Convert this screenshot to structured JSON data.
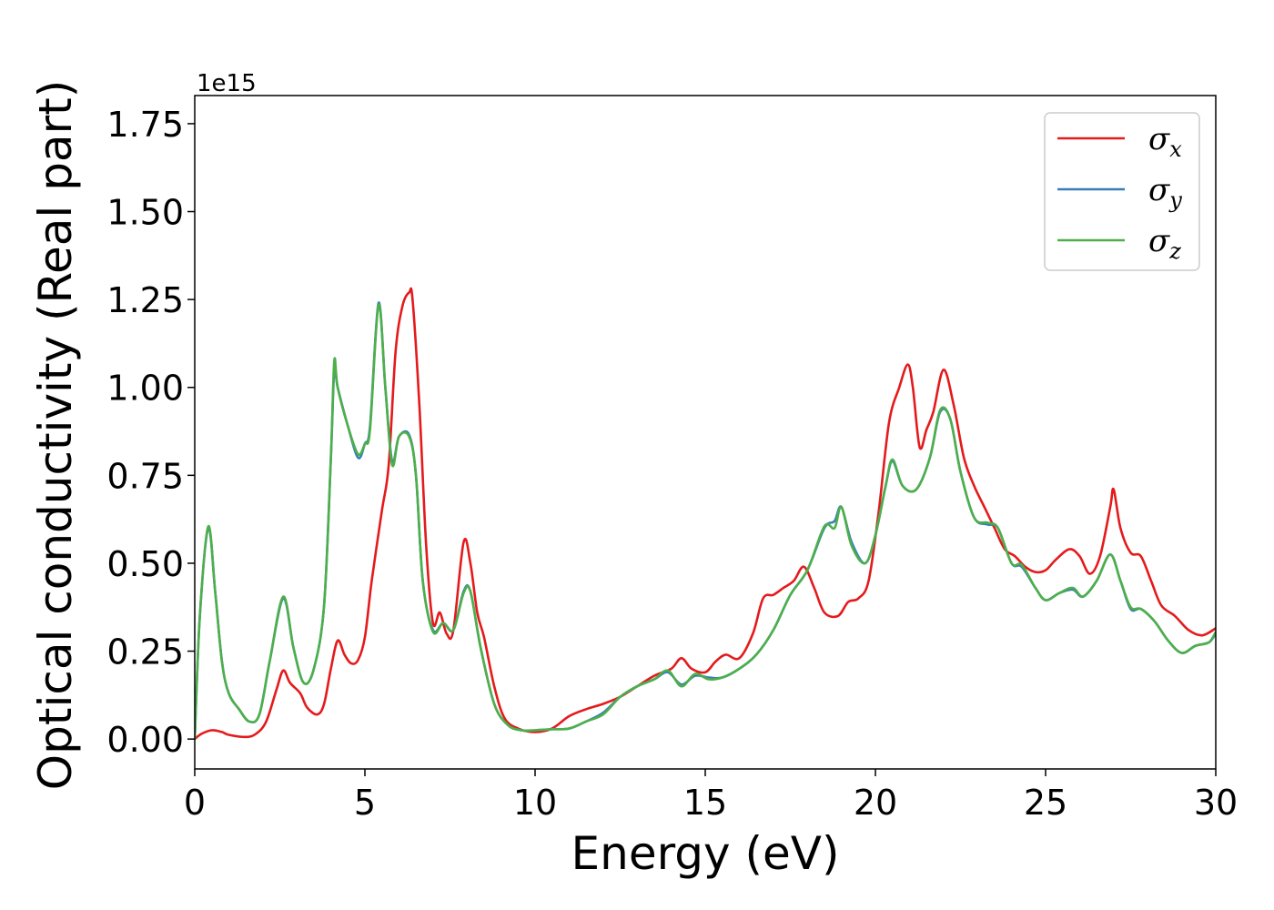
{
  "chart_data": {
    "type": "line",
    "xlabel": "Energy (eV)",
    "ylabel": "Optical conductivity (Real part)",
    "y_offset_text": "1e15",
    "xlim": [
      0,
      30
    ],
    "ylim": [
      -0.085,
      1.83
    ],
    "x_ticks": [
      0,
      5,
      10,
      15,
      20,
      25,
      30
    ],
    "x_tick_labels": [
      "0",
      "5",
      "10",
      "15",
      "20",
      "25",
      "30"
    ],
    "y_ticks": [
      0,
      0.25,
      0.5,
      0.75,
      1.0,
      1.25,
      1.5,
      1.75
    ],
    "y_tick_labels": [
      "0.00",
      "0.25",
      "0.50",
      "0.75",
      "1.00",
      "1.25",
      "1.50",
      "1.75"
    ],
    "grid": false,
    "legend_position": "top-right",
    "series": [
      {
        "name": "σx",
        "symbol": "σ",
        "subscript": "x",
        "color": "#e41a1c",
        "points": [
          [
            0,
            0.0
          ],
          [
            0.2,
            0.015
          ],
          [
            0.5,
            0.025
          ],
          [
            0.8,
            0.02
          ],
          [
            1.0,
            0.012
          ],
          [
            1.5,
            0.006
          ],
          [
            1.8,
            0.015
          ],
          [
            2.1,
            0.05
          ],
          [
            2.4,
            0.14
          ],
          [
            2.6,
            0.195
          ],
          [
            2.8,
            0.16
          ],
          [
            3.1,
            0.13
          ],
          [
            3.3,
            0.09
          ],
          [
            3.6,
            0.07
          ],
          [
            3.8,
            0.1
          ],
          [
            4.0,
            0.2
          ],
          [
            4.2,
            0.28
          ],
          [
            4.4,
            0.24
          ],
          [
            4.6,
            0.215
          ],
          [
            4.8,
            0.225
          ],
          [
            5.0,
            0.29
          ],
          [
            5.2,
            0.45
          ],
          [
            5.5,
            0.65
          ],
          [
            5.7,
            0.78
          ],
          [
            5.9,
            1.1
          ],
          [
            6.1,
            1.23
          ],
          [
            6.3,
            1.27
          ],
          [
            6.4,
            1.25
          ],
          [
            6.6,
            0.95
          ],
          [
            6.8,
            0.55
          ],
          [
            7.0,
            0.33
          ],
          [
            7.2,
            0.36
          ],
          [
            7.4,
            0.3
          ],
          [
            7.6,
            0.31
          ],
          [
            7.9,
            0.56
          ],
          [
            8.1,
            0.5
          ],
          [
            8.3,
            0.36
          ],
          [
            8.5,
            0.29
          ],
          [
            8.8,
            0.15
          ],
          [
            9.1,
            0.06
          ],
          [
            9.5,
            0.03
          ],
          [
            10.0,
            0.02
          ],
          [
            10.5,
            0.03
          ],
          [
            11.0,
            0.065
          ],
          [
            11.5,
            0.085
          ],
          [
            12.0,
            0.1
          ],
          [
            12.5,
            0.12
          ],
          [
            13.0,
            0.15
          ],
          [
            13.5,
            0.18
          ],
          [
            14.0,
            0.2
          ],
          [
            14.3,
            0.23
          ],
          [
            14.6,
            0.2
          ],
          [
            15.0,
            0.19
          ],
          [
            15.3,
            0.22
          ],
          [
            15.6,
            0.24
          ],
          [
            16.0,
            0.23
          ],
          [
            16.4,
            0.3
          ],
          [
            16.7,
            0.4
          ],
          [
            17.0,
            0.41
          ],
          [
            17.3,
            0.43
          ],
          [
            17.6,
            0.45
          ],
          [
            17.9,
            0.49
          ],
          [
            18.2,
            0.43
          ],
          [
            18.5,
            0.36
          ],
          [
            18.9,
            0.35
          ],
          [
            19.2,
            0.39
          ],
          [
            19.5,
            0.4
          ],
          [
            19.8,
            0.45
          ],
          [
            20.1,
            0.65
          ],
          [
            20.4,
            0.9
          ],
          [
            20.7,
            1.0
          ],
          [
            20.95,
            1.065
          ],
          [
            21.1,
            1.0
          ],
          [
            21.3,
            0.83
          ],
          [
            21.5,
            0.88
          ],
          [
            21.7,
            0.93
          ],
          [
            22.0,
            1.05
          ],
          [
            22.3,
            0.95
          ],
          [
            22.6,
            0.8
          ],
          [
            22.9,
            0.72
          ],
          [
            23.2,
            0.66
          ],
          [
            23.5,
            0.6
          ],
          [
            23.8,
            0.54
          ],
          [
            24.1,
            0.52
          ],
          [
            24.4,
            0.49
          ],
          [
            24.7,
            0.475
          ],
          [
            25.0,
            0.48
          ],
          [
            25.3,
            0.51
          ],
          [
            25.7,
            0.54
          ],
          [
            26.0,
            0.52
          ],
          [
            26.3,
            0.47
          ],
          [
            26.6,
            0.52
          ],
          [
            26.9,
            0.66
          ],
          [
            27.0,
            0.71
          ],
          [
            27.2,
            0.6
          ],
          [
            27.5,
            0.53
          ],
          [
            27.8,
            0.52
          ],
          [
            28.1,
            0.45
          ],
          [
            28.4,
            0.38
          ],
          [
            28.8,
            0.35
          ],
          [
            29.2,
            0.31
          ],
          [
            29.6,
            0.295
          ],
          [
            30.0,
            0.315
          ]
        ]
      },
      {
        "name": "σy",
        "symbol": "σ",
        "subscript": "y",
        "color": "#377eb8",
        "points": [
          [
            0,
            0.0
          ],
          [
            0.15,
            0.35
          ],
          [
            0.4,
            0.6
          ],
          [
            0.6,
            0.42
          ],
          [
            0.8,
            0.22
          ],
          [
            1.0,
            0.13
          ],
          [
            1.3,
            0.085
          ],
          [
            1.6,
            0.05
          ],
          [
            1.9,
            0.07
          ],
          [
            2.2,
            0.22
          ],
          [
            2.6,
            0.4
          ],
          [
            2.9,
            0.26
          ],
          [
            3.2,
            0.16
          ],
          [
            3.5,
            0.2
          ],
          [
            3.8,
            0.38
          ],
          [
            4.0,
            0.8
          ],
          [
            4.1,
            1.05
          ],
          [
            4.2,
            1.0
          ],
          [
            4.5,
            0.89
          ],
          [
            4.8,
            0.8
          ],
          [
            5.0,
            0.84
          ],
          [
            5.15,
            0.89
          ],
          [
            5.4,
            1.24
          ],
          [
            5.6,
            1.0
          ],
          [
            5.8,
            0.79
          ],
          [
            6.0,
            0.86
          ],
          [
            6.3,
            0.865
          ],
          [
            6.5,
            0.75
          ],
          [
            6.7,
            0.45
          ],
          [
            7.0,
            0.31
          ],
          [
            7.3,
            0.33
          ],
          [
            7.6,
            0.31
          ],
          [
            7.9,
            0.42
          ],
          [
            8.1,
            0.42
          ],
          [
            8.4,
            0.26
          ],
          [
            8.8,
            0.1
          ],
          [
            9.2,
            0.04
          ],
          [
            9.6,
            0.025
          ],
          [
            10.0,
            0.025
          ],
          [
            10.5,
            0.028
          ],
          [
            11.0,
            0.03
          ],
          [
            11.5,
            0.05
          ],
          [
            12.0,
            0.075
          ],
          [
            12.5,
            0.12
          ],
          [
            13.0,
            0.15
          ],
          [
            13.5,
            0.17
          ],
          [
            13.9,
            0.19
          ],
          [
            14.3,
            0.155
          ],
          [
            14.7,
            0.18
          ],
          [
            15.1,
            0.175
          ],
          [
            15.5,
            0.175
          ],
          [
            16.0,
            0.2
          ],
          [
            16.5,
            0.24
          ],
          [
            17.0,
            0.31
          ],
          [
            17.5,
            0.41
          ],
          [
            18.0,
            0.48
          ],
          [
            18.5,
            0.6
          ],
          [
            18.8,
            0.62
          ],
          [
            19.0,
            0.66
          ],
          [
            19.3,
            0.56
          ],
          [
            19.7,
            0.5
          ],
          [
            20.0,
            0.58
          ],
          [
            20.3,
            0.72
          ],
          [
            20.5,
            0.79
          ],
          [
            20.8,
            0.72
          ],
          [
            21.2,
            0.71
          ],
          [
            21.6,
            0.8
          ],
          [
            21.9,
            0.93
          ],
          [
            22.2,
            0.91
          ],
          [
            22.5,
            0.76
          ],
          [
            22.9,
            0.63
          ],
          [
            23.3,
            0.61
          ],
          [
            23.6,
            0.6
          ],
          [
            24.0,
            0.5
          ],
          [
            24.3,
            0.49
          ],
          [
            24.7,
            0.43
          ],
          [
            25.0,
            0.395
          ],
          [
            25.4,
            0.415
          ],
          [
            25.8,
            0.425
          ],
          [
            26.1,
            0.405
          ],
          [
            26.5,
            0.45
          ],
          [
            26.9,
            0.525
          ],
          [
            27.2,
            0.45
          ],
          [
            27.5,
            0.37
          ],
          [
            27.8,
            0.37
          ],
          [
            28.2,
            0.335
          ],
          [
            28.6,
            0.28
          ],
          [
            29.0,
            0.245
          ],
          [
            29.4,
            0.265
          ],
          [
            29.8,
            0.275
          ],
          [
            30.0,
            0.3
          ]
        ]
      },
      {
        "name": "σz",
        "symbol": "σ",
        "subscript": "z",
        "color": "#4daf4a",
        "points": [
          [
            0,
            0.0
          ],
          [
            0.15,
            0.35
          ],
          [
            0.4,
            0.605
          ],
          [
            0.6,
            0.42
          ],
          [
            0.8,
            0.22
          ],
          [
            1.0,
            0.13
          ],
          [
            1.3,
            0.085
          ],
          [
            1.6,
            0.05
          ],
          [
            1.9,
            0.07
          ],
          [
            2.2,
            0.22
          ],
          [
            2.6,
            0.405
          ],
          [
            2.9,
            0.26
          ],
          [
            3.2,
            0.16
          ],
          [
            3.5,
            0.2
          ],
          [
            3.8,
            0.38
          ],
          [
            4.0,
            0.8
          ],
          [
            4.1,
            1.075
          ],
          [
            4.2,
            1.0
          ],
          [
            4.5,
            0.89
          ],
          [
            4.8,
            0.81
          ],
          [
            5.0,
            0.84
          ],
          [
            5.15,
            0.88
          ],
          [
            5.4,
            1.235
          ],
          [
            5.6,
            1.0
          ],
          [
            5.8,
            0.78
          ],
          [
            6.0,
            0.86
          ],
          [
            6.3,
            0.86
          ],
          [
            6.5,
            0.75
          ],
          [
            6.7,
            0.45
          ],
          [
            7.0,
            0.305
          ],
          [
            7.3,
            0.33
          ],
          [
            7.6,
            0.31
          ],
          [
            7.9,
            0.415
          ],
          [
            8.1,
            0.42
          ],
          [
            8.4,
            0.26
          ],
          [
            8.8,
            0.1
          ],
          [
            9.2,
            0.04
          ],
          [
            9.6,
            0.025
          ],
          [
            10.0,
            0.025
          ],
          [
            10.5,
            0.028
          ],
          [
            11.0,
            0.03
          ],
          [
            11.5,
            0.05
          ],
          [
            12.0,
            0.07
          ],
          [
            12.5,
            0.12
          ],
          [
            13.0,
            0.15
          ],
          [
            13.5,
            0.17
          ],
          [
            13.9,
            0.195
          ],
          [
            14.3,
            0.15
          ],
          [
            14.7,
            0.185
          ],
          [
            15.1,
            0.17
          ],
          [
            15.5,
            0.175
          ],
          [
            16.0,
            0.2
          ],
          [
            16.5,
            0.24
          ],
          [
            17.0,
            0.31
          ],
          [
            17.5,
            0.41
          ],
          [
            18.0,
            0.48
          ],
          [
            18.5,
            0.605
          ],
          [
            18.8,
            0.6
          ],
          [
            19.0,
            0.66
          ],
          [
            19.3,
            0.55
          ],
          [
            19.7,
            0.5
          ],
          [
            20.0,
            0.58
          ],
          [
            20.3,
            0.72
          ],
          [
            20.5,
            0.795
          ],
          [
            20.8,
            0.72
          ],
          [
            21.2,
            0.71
          ],
          [
            21.6,
            0.8
          ],
          [
            21.9,
            0.935
          ],
          [
            22.2,
            0.91
          ],
          [
            22.5,
            0.76
          ],
          [
            22.9,
            0.63
          ],
          [
            23.3,
            0.615
          ],
          [
            23.6,
            0.6
          ],
          [
            24.0,
            0.5
          ],
          [
            24.3,
            0.495
          ],
          [
            24.7,
            0.43
          ],
          [
            25.0,
            0.395
          ],
          [
            25.4,
            0.415
          ],
          [
            25.8,
            0.43
          ],
          [
            26.1,
            0.405
          ],
          [
            26.5,
            0.45
          ],
          [
            26.9,
            0.525
          ],
          [
            27.2,
            0.45
          ],
          [
            27.5,
            0.375
          ],
          [
            27.8,
            0.37
          ],
          [
            28.2,
            0.335
          ],
          [
            28.6,
            0.28
          ],
          [
            29.0,
            0.245
          ],
          [
            29.4,
            0.265
          ],
          [
            29.8,
            0.275
          ],
          [
            30.0,
            0.305
          ]
        ]
      }
    ]
  }
}
